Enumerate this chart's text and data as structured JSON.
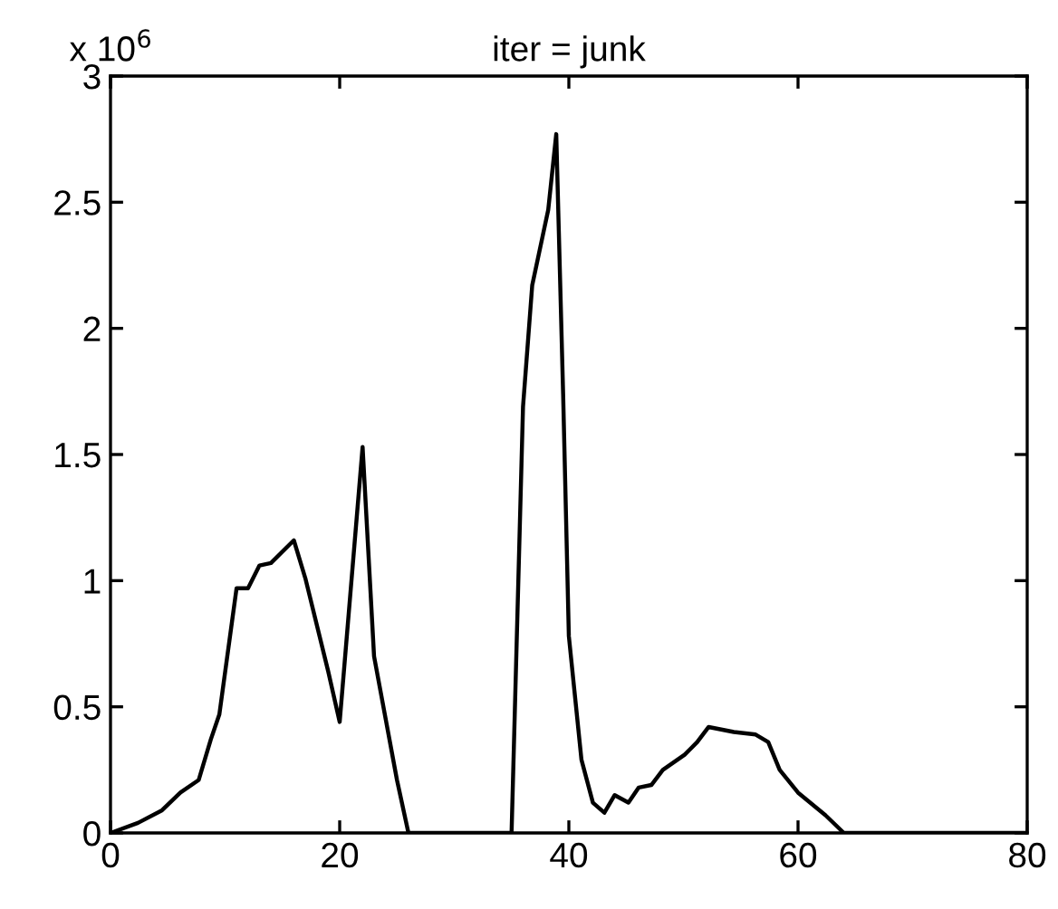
{
  "chart_data": {
    "type": "line",
    "title": "iter = junk",
    "x": [
      0,
      2.4,
      4.5,
      6.1,
      7.7,
      8.75,
      9.5,
      11,
      12,
      13,
      14,
      16,
      17,
      19,
      20,
      22,
      23,
      25,
      26,
      35,
      36,
      36.8,
      38.2,
      38.9,
      39.5,
      40,
      41.1,
      42.1,
      43.1,
      44,
      45.2,
      46.1,
      47.2,
      48.2,
      50.1,
      51.2,
      52.2,
      54.4,
      56.3,
      57.4,
      58.4,
      60,
      62.4,
      64,
      80
    ],
    "series": [
      {
        "color": "#000000",
        "values": [
          0,
          0.04,
          0.09,
          0.16,
          0.21,
          0.37,
          0.47,
          0.97,
          0.97,
          1.06,
          1.07,
          1.16,
          1.01,
          0.64,
          0.44,
          1.53,
          0.7,
          0.21,
          0,
          0,
          1.69,
          2.17,
          2.47,
          2.77,
          1.74,
          0.78,
          0.29,
          0.12,
          0.08,
          0.15,
          0.12,
          0.18,
          0.19,
          0.25,
          0.31,
          0.36,
          0.42,
          0.4,
          0.39,
          0.36,
          0.25,
          0.16,
          0.07,
          0,
          0
        ]
      }
    ],
    "xlim": [
      0,
      80
    ],
    "xticks": [
      0,
      20,
      40,
      60,
      80
    ],
    "ylim": [
      0,
      3
    ],
    "yticks": [
      0,
      0.5,
      1,
      1.5,
      2,
      2.5,
      3
    ],
    "annotations": [
      "x 10$^{6}$"
    ],
    "grid": false,
    "legend": false,
    "marker": "none",
    "line_style": "solid"
  }
}
